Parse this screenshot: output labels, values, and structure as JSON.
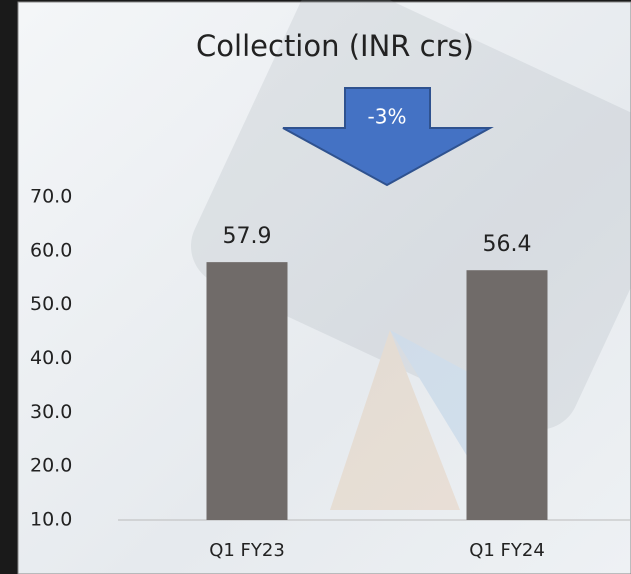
{
  "chart_data": {
    "type": "bar",
    "title": "Collection (INR crs)",
    "annotation": "-3%",
    "categories": [
      "Q1 FY23",
      "Q1 FY24"
    ],
    "values": [
      57.9,
      56.4
    ],
    "color": "#706b69",
    "ylim": [
      10,
      70
    ],
    "yticks": [
      {
        "value": 10,
        "label": "10.0"
      },
      {
        "value": 20,
        "label": "20.0"
      },
      {
        "value": 30,
        "label": "30.0"
      },
      {
        "value": 40,
        "label": "40.0"
      },
      {
        "value": 50,
        "label": "50.0"
      },
      {
        "value": 60,
        "label": "60.0"
      },
      {
        "value": 70,
        "label": "70.0"
      }
    ],
    "grid": false
  }
}
